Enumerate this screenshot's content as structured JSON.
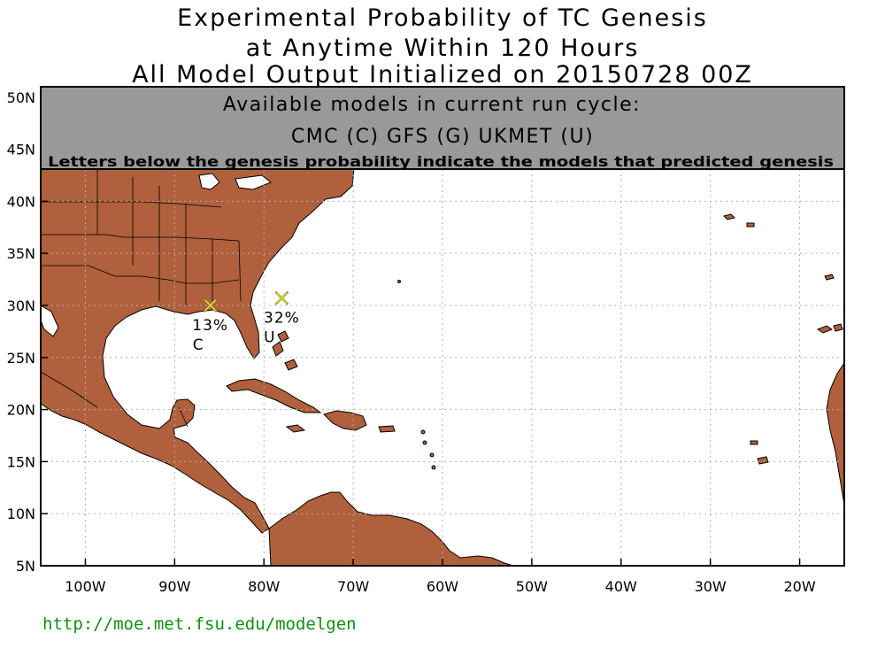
{
  "title": {
    "line1": "Experimental Probability of TC Genesis",
    "line2": "at Anytime Within 120 Hours",
    "line3": "All Model Output Initialized on 20150728 00Z"
  },
  "legend_box": {
    "heading": "Available models in current run cycle:",
    "models": "CMC (C) GFS (G)  UKMET (U)",
    "note": "Letters below the genesis probability indicate the models that predicted genesis"
  },
  "axes": {
    "lon_labels": [
      "100W",
      "90W",
      "80W",
      "70W",
      "60W",
      "50W",
      "40W",
      "30W",
      "20W"
    ],
    "lon_values": [
      -100,
      -90,
      -80,
      -70,
      -60,
      -50,
      -40,
      -30,
      -20
    ],
    "lat_labels": [
      "5N",
      "10N",
      "15N",
      "20N",
      "25N",
      "30N",
      "35N",
      "40N",
      "45N",
      "50N"
    ],
    "lat_values": [
      5,
      10,
      15,
      20,
      25,
      30,
      35,
      40,
      45,
      50
    ],
    "lon_range": [
      -105,
      -15
    ],
    "lat_range": [
      5,
      51
    ]
  },
  "genesis_points": [
    {
      "label": "13%",
      "models": "C",
      "lon": -86,
      "lat": 30,
      "color": "#e8e840"
    },
    {
      "label": "32%",
      "models": "U",
      "lon": -78,
      "lat": 30.7,
      "color": "#e8e840"
    }
  ],
  "colors": {
    "land": "#b0603c",
    "ocean": "#ffffff",
    "banner": "#999999",
    "grid": "#b0b0b0",
    "marker": "#d8d020",
    "footer": "#109010"
  },
  "footer": {
    "url": "http://moe.met.fsu.edu/modelgen"
  }
}
